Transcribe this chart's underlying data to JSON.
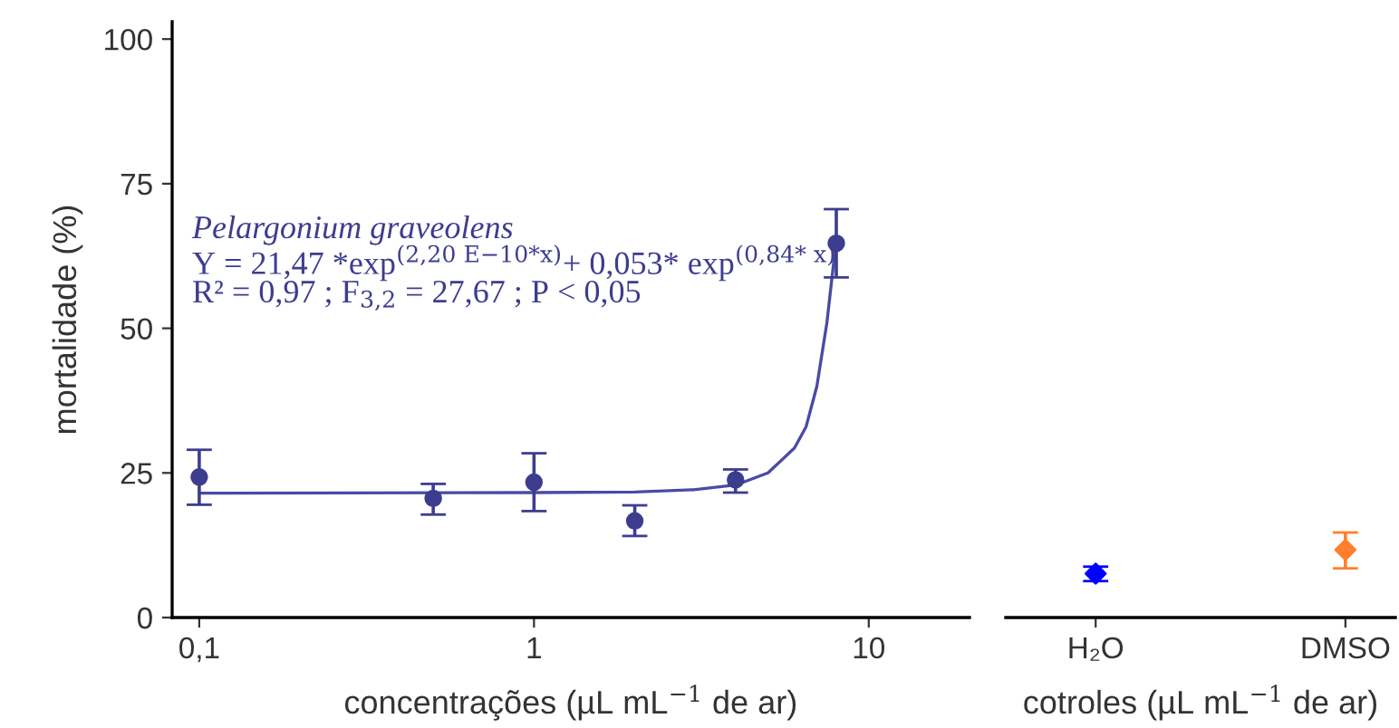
{
  "chart_data": [
    {
      "type": "scatter",
      "xlabel": "concentrações (µL mL$^{−1}$ de ar)",
      "ylabel": "mortalidade (%)",
      "log": "x",
      "xlim": [
        0.083,
        20
      ],
      "xticks": [
        {
          "value": 0.1,
          "label": "0,1"
        },
        1,
        10
      ],
      "ylim": [
        0,
        103
      ],
      "yticks": [
        0,
        25,
        50,
        75,
        100
      ],
      "grid": false,
      "legend": false,
      "marker": "circle",
      "annotations": [
        "Pelargonium graveolens",
        "Y = 21,47 *exp$^{(2,20 E−10*x)}$+ 0,053* exp$^{(0,84* x)}$",
        "R² = 0,97 ; F$_{3,2}$ = 27,67 ; P < 0,05"
      ],
      "series": [
        {
          "color": "#3d3d8f",
          "x": [
            0.1,
            0.5,
            1,
            2,
            4,
            8
          ],
          "values": [
            24.3,
            20.6,
            23.4,
            16.7,
            23.8,
            64.7
          ],
          "errors": [
            [
              19.5,
              29
            ],
            [
              17.8,
              23.1
            ],
            [
              18.4,
              28.4
            ],
            [
              14.1,
              19.4
            ],
            [
              21.6,
              25.6
            ],
            [
              58.8,
              70.6
            ]
          ]
        },
        {
          "type": "line",
          "color": "#4a4aa6",
          "marker": "none",
          "line_style": "solid",
          "x": [
            0.1,
            1,
            2,
            3,
            4,
            5,
            6,
            6.5,
            7,
            7.5,
            8
          ],
          "values": [
            21.5,
            21.6,
            21.7,
            22.1,
            22.9,
            25,
            29.3,
            33,
            40,
            51,
            65.4
          ]
        }
      ]
    },
    {
      "type": "scatter",
      "xlabel": "cotroles (µL mL$^{−1}$ de ar)",
      "categories": [
        "H₂O",
        "DMSO"
      ],
      "ylim": [
        0,
        100
      ],
      "yticks": [
        0,
        25,
        50,
        75,
        100
      ],
      "tick_labels": "x",
      "grid": false,
      "legend": false,
      "marker": "diamond",
      "series": [
        {
          "colors": [
            "#0000ff",
            "#ff7f2a"
          ],
          "values": [
            7.6,
            11.7
          ],
          "errors": [
            [
              6.3,
              8.8
            ],
            [
              8.5,
              14.7
            ]
          ]
        }
      ]
    }
  ]
}
